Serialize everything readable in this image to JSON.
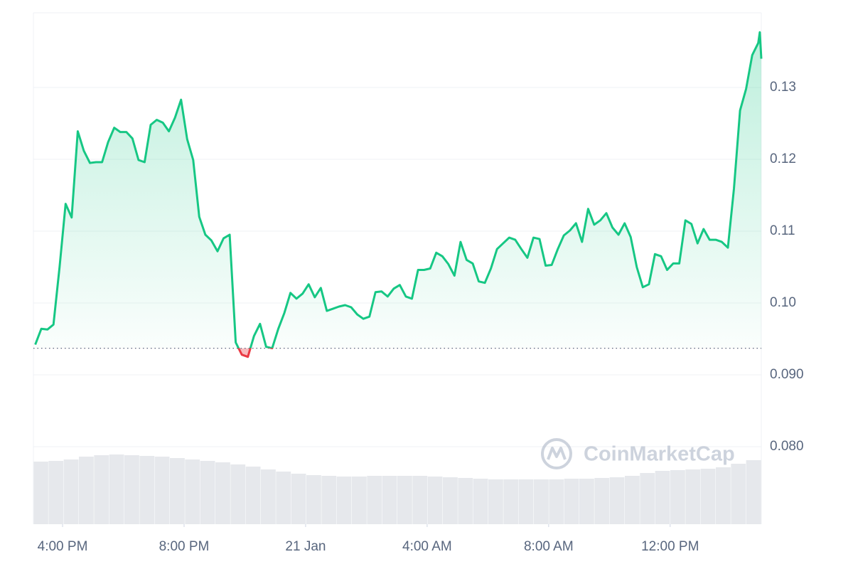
{
  "chart_data": {
    "type": "area-line",
    "x": [
      15.1,
      15.3,
      15.5,
      15.7,
      15.9,
      16.1,
      16.3,
      16.5,
      16.7,
      16.9,
      17.1,
      17.3,
      17.5,
      17.7,
      17.9,
      18.1,
      18.3,
      18.5,
      18.7,
      18.9,
      19.1,
      19.3,
      19.5,
      19.7,
      19.9,
      20.1,
      20.3,
      20.5,
      20.7,
      20.9,
      21.1,
      21.3,
      21.5,
      21.7,
      21.9,
      22.1,
      22.3,
      22.5,
      22.7,
      22.9,
      23.1,
      23.3,
      23.5,
      23.7,
      23.9,
      24.1,
      24.3,
      24.5,
      24.7,
      24.9,
      25.1,
      25.3,
      25.5,
      25.7,
      25.9,
      26.1,
      26.3,
      26.5,
      26.7,
      26.9,
      27.1,
      27.3,
      27.5,
      27.7,
      27.9,
      28.1,
      28.3,
      28.5,
      28.7,
      28.9,
      29.1,
      29.3,
      29.5,
      29.7,
      29.9,
      30.1,
      30.3,
      30.5,
      30.7,
      30.9,
      31.1,
      31.3,
      31.5,
      31.7,
      31.9,
      32.1,
      32.3,
      32.5,
      32.7,
      32.9,
      33.1,
      33.3,
      33.5,
      33.7,
      33.9,
      34.1,
      34.3,
      34.5,
      34.7,
      34.9,
      35.1,
      35.3,
      35.5,
      35.7,
      35.9,
      36.1,
      36.3,
      36.5,
      36.7,
      36.9,
      37.1,
      37.3,
      37.5,
      37.7,
      37.9,
      38.1,
      38.3,
      38.5,
      38.7,
      38.9,
      38.95,
      39.0
    ],
    "values": [
      0.0942,
      0.0964,
      0.0963,
      0.097,
      0.105,
      0.1138,
      0.1119,
      0.1239,
      0.1212,
      0.1195,
      0.1196,
      0.1196,
      0.1224,
      0.1244,
      0.1238,
      0.1238,
      0.1229,
      0.1199,
      0.1196,
      0.1248,
      0.1255,
      0.1251,
      0.1239,
      0.1258,
      0.1283,
      0.1228,
      0.1199,
      0.112,
      0.1095,
      0.1087,
      0.1072,
      0.109,
      0.1095,
      0.0945,
      0.0928,
      0.0925,
      0.0954,
      0.0971,
      0.0939,
      0.0937,
      0.0964,
      0.0986,
      0.1014,
      0.1006,
      0.1013,
      0.1026,
      0.1008,
      0.1021,
      0.0989,
      0.0992,
      0.0995,
      0.0997,
      0.0994,
      0.0984,
      0.0978,
      0.0981,
      0.1015,
      0.1016,
      0.1009,
      0.102,
      0.1025,
      0.1009,
      0.1006,
      0.1046,
      0.1046,
      0.1048,
      0.107,
      0.1065,
      0.1054,
      0.1038,
      0.1085,
      0.106,
      0.1055,
      0.103,
      0.1028,
      0.1048,
      0.1075,
      0.1083,
      0.1091,
      0.1088,
      0.1075,
      0.1063,
      0.1091,
      0.1089,
      0.1052,
      0.1053,
      0.1075,
      0.1094,
      0.1101,
      0.1111,
      0.1085,
      0.1131,
      0.1109,
      0.1115,
      0.1125,
      0.1105,
      0.1095,
      0.1111,
      0.1092,
      0.105,
      0.1022,
      0.1026,
      0.1068,
      0.1065,
      0.1046,
      0.1055,
      0.1055,
      0.1115,
      0.111,
      0.1083,
      0.1103,
      0.1088,
      0.1088,
      0.1085,
      0.1077,
      0.1159,
      0.1268,
      0.1298,
      0.1345,
      0.1362,
      0.1377,
      0.134
    ],
    "baseline": 0.0937,
    "up_color": "#16c784",
    "down_color": "#ea3943",
    "volume": {
      "values": [
        88,
        89,
        91,
        95,
        97,
        98,
        97,
        96,
        95,
        93,
        91,
        89,
        87,
        84,
        81,
        77,
        74,
        71,
        69,
        68,
        67,
        67,
        68,
        68,
        68,
        68,
        67,
        66,
        65,
        64,
        63,
        63,
        63,
        63,
        63,
        64,
        64,
        65,
        66,
        68,
        72,
        75,
        76,
        77,
        78,
        80,
        85,
        90
      ],
      "ylim": [
        0,
        100
      ],
      "color": "#e6e8ec"
    },
    "xlim": [
      15.04,
      39.0
    ],
    "xticks": [
      {
        "value": 16,
        "label": "4:00 PM"
      },
      {
        "value": 20,
        "label": "8:00 PM"
      },
      {
        "value": 24,
        "label": "21 Jan"
      },
      {
        "value": 28,
        "label": "4:00 AM"
      },
      {
        "value": 32,
        "label": "8:00 AM"
      },
      {
        "value": 36,
        "label": "12:00 PM"
      }
    ],
    "ylim": [
      0.0692,
      0.1404
    ],
    "yticks": [
      {
        "value": 0.08,
        "label": "0.080"
      },
      {
        "value": 0.09,
        "label": "0.090"
      },
      {
        "value": 0.1,
        "label": "0.10"
      },
      0.11,
      0.12,
      0.13
    ],
    "grid": true,
    "watermark": "CoinMarketCap"
  }
}
